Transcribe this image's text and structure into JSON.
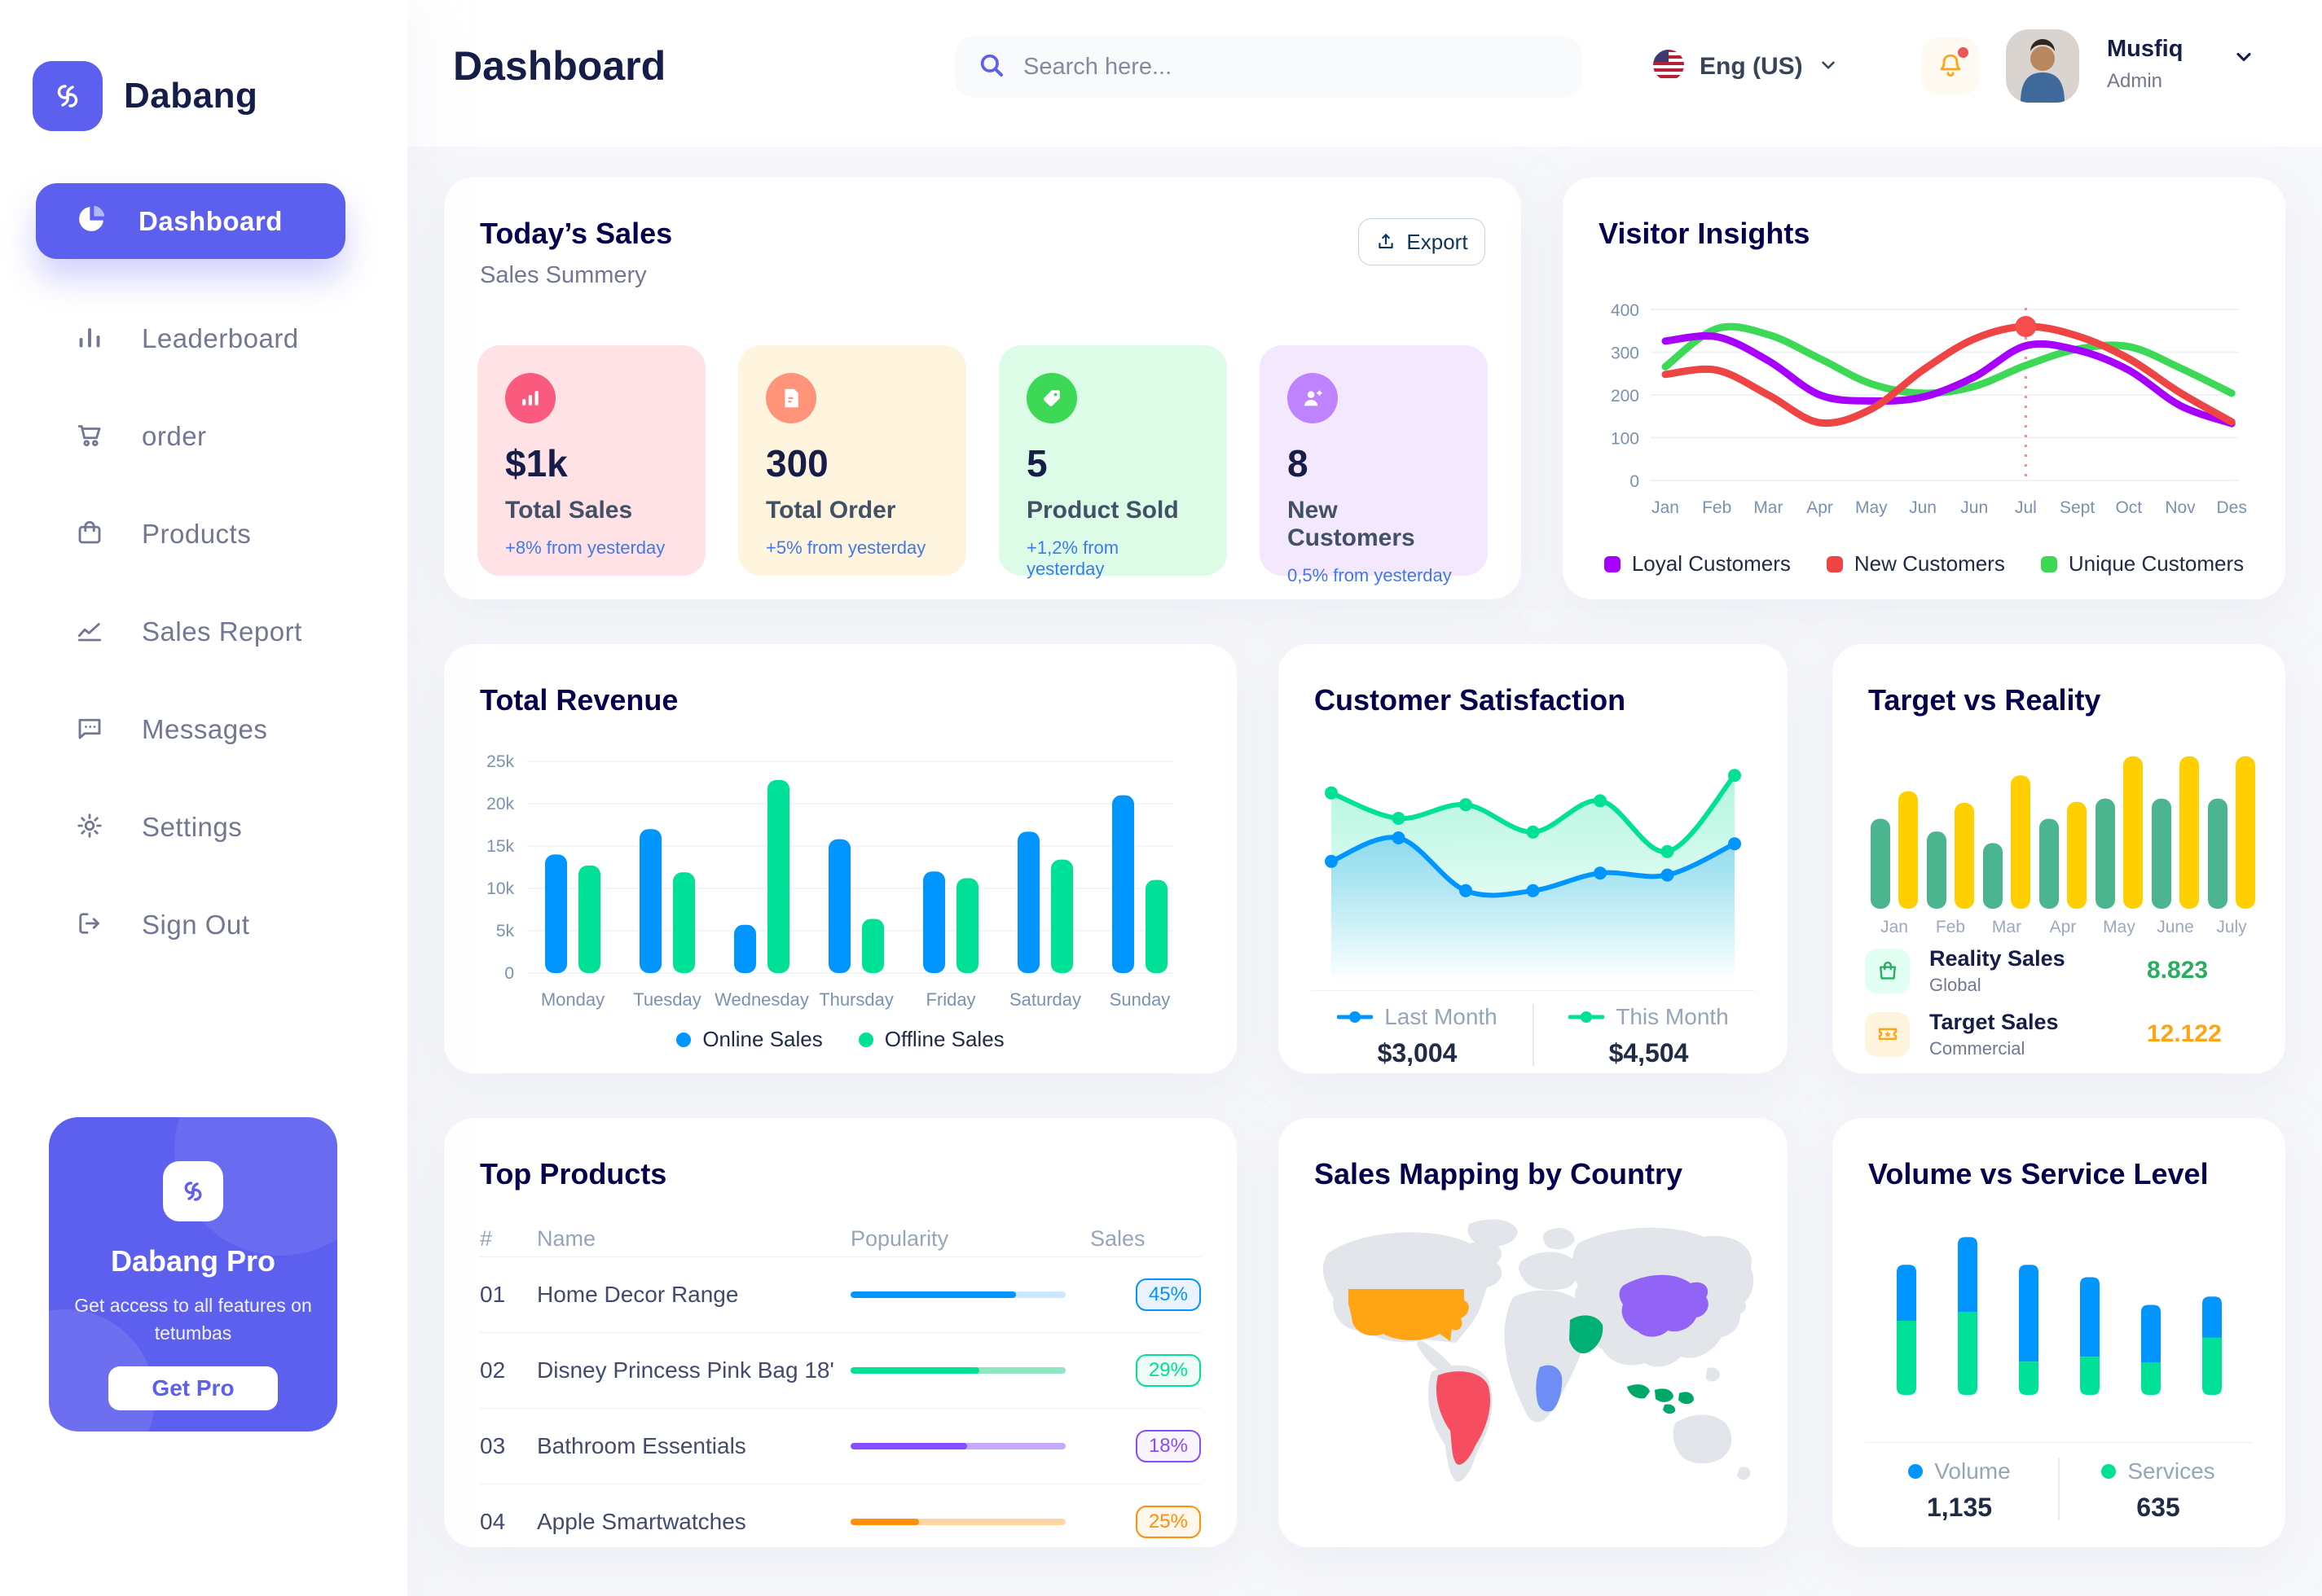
{
  "app": {
    "name": "Dabang",
    "accent_color": "#5D5FEF"
  },
  "sidebar": {
    "items": [
      {
        "label": "Dashboard",
        "icon": "pie-chart-icon",
        "active": true
      },
      {
        "label": "Leaderboard",
        "icon": "leaderboard-icon",
        "active": false
      },
      {
        "label": "order",
        "icon": "cart-icon",
        "active": false
      },
      {
        "label": "Products",
        "icon": "bag-icon",
        "active": false
      },
      {
        "label": "Sales Report",
        "icon": "sales-report-icon",
        "active": false
      },
      {
        "label": "Messages",
        "icon": "messages-icon",
        "active": false
      },
      {
        "label": "Settings",
        "icon": "gear-icon",
        "active": false
      },
      {
        "label": "Sign Out",
        "icon": "sign-out-icon",
        "active": false
      }
    ],
    "pro_card": {
      "title": "Dabang Pro",
      "description": "Get access to all features on tetumbas",
      "button_label": "Get Pro"
    }
  },
  "header": {
    "title": "Dashboard",
    "search_placeholder": "Search here...",
    "language": "Eng (US)",
    "user": {
      "name": "Musfiq",
      "role": "Admin"
    }
  },
  "todays_sales": {
    "title": "Today’s Sales",
    "subtitle": "Sales Summery",
    "export_label": "Export",
    "delta_color": "#4079ED",
    "stats": [
      {
        "value": "$1k",
        "label": "Total Sales",
        "delta": "+8% from yesterday",
        "bg": "#FFE2E5",
        "icon_bg": "#FA5A7D",
        "icon": "stats-icon"
      },
      {
        "value": "300",
        "label": "Total Order",
        "delta": "+5% from yesterday",
        "bg": "#FFF4DE",
        "icon_bg": "#FF947A",
        "icon": "order-file-icon"
      },
      {
        "value": "5",
        "label": "Product Sold",
        "delta": "+1,2% from yesterday",
        "bg": "#DCFCE7",
        "icon_bg": "#3CD856",
        "icon": "tag-icon"
      },
      {
        "value": "8",
        "label": "New Customers",
        "delta": "0,5% from yesterday",
        "bg": "#F3E8FF",
        "icon_bg": "#BF83FF",
        "icon": "user-plus-icon"
      }
    ]
  },
  "chart_data": {
    "visitor_insights": {
      "type": "line",
      "title": "Visitor Insights",
      "x": [
        "Jan",
        "Feb",
        "Mar",
        "Apr",
        "May",
        "Jun",
        "Jun",
        "Jul",
        "Sept",
        "Oct",
        "Nov",
        "Des"
      ],
      "ylim": [
        0,
        400
      ],
      "yticks": [
        0,
        100,
        200,
        300,
        400
      ],
      "grid": true,
      "legend_position": "bottom",
      "series": [
        {
          "name": "Unique Customers",
          "color": "#3CD856",
          "values": [
            266,
            355,
            341,
            285,
            226,
            204,
            220,
            269,
            307,
            313,
            263,
            204
          ]
        },
        {
          "name": "Loyal Customers",
          "color": "#A700FF",
          "values": [
            326,
            336,
            280,
            200,
            186,
            195,
            242,
            315,
            305,
            258,
            175,
            133
          ]
        },
        {
          "name": "New Customers",
          "color": "#EF4444",
          "values": [
            248,
            258,
            200,
            135,
            167,
            258,
            331,
            360,
            338,
            285,
            205,
            137
          ]
        }
      ],
      "marker": {
        "series": "New Customers",
        "index": 7,
        "label": "Jul",
        "value": 360,
        "color": "#F64E4E"
      }
    },
    "total_revenue": {
      "type": "bar",
      "title": "Total Revenue",
      "categories": [
        "Monday",
        "Tuesday",
        "Wednesday",
        "Thursday",
        "Friday",
        "Saturday",
        "Sunday"
      ],
      "ylim": [
        0,
        25000
      ],
      "ytick_labels": [
        "0",
        "5k",
        "10k",
        "15k",
        "20k",
        "25k"
      ],
      "unit": "k",
      "legend_position": "bottom",
      "series": [
        {
          "name": "Online Sales",
          "color": "#0095FF",
          "values": [
            14,
            17,
            5.7,
            15.8,
            12,
            16.7,
            21
          ]
        },
        {
          "name": "Offline Sales",
          "color": "#00E096",
          "values": [
            12.7,
            11.9,
            22.8,
            6.4,
            11.2,
            13.4,
            11
          ]
        }
      ]
    },
    "customer_satisfaction": {
      "type": "area",
      "title": "Customer Satisfaction",
      "legend_position": "bottom",
      "series": [
        {
          "name": "This Month",
          "color": "#00E096",
          "total": "$4,504",
          "values": [
            83,
            70,
            77,
            63,
            79,
            53,
            92
          ]
        },
        {
          "name": "Last Month",
          "color": "#0095FF",
          "total": "$3,004",
          "values": [
            48,
            60,
            33,
            33,
            42,
            41,
            57
          ]
        }
      ]
    },
    "target_vs_reality": {
      "type": "bar",
      "title": "Target vs Reality",
      "categories": [
        "Jan",
        "Feb",
        "Mar",
        "Apr",
        "May",
        "June",
        "July"
      ],
      "series": [
        {
          "name": "Reality Sales",
          "color": "#4AB58E",
          "values": [
            8.5,
            7.3,
            6.2,
            8.5,
            10.4,
            10.4,
            10.4
          ]
        },
        {
          "name": "Target Sales",
          "color": "#FFCF00",
          "values": [
            11.1,
            10,
            12.6,
            10.1,
            14.4,
            14.4,
            14.4
          ]
        }
      ],
      "legend": [
        {
          "label": "Reality Sales",
          "sub": "Global",
          "value": "8.823",
          "value_color": "#27AE60",
          "tile_bg": "#E2FFF3",
          "icon": "shopping-bag-icon"
        },
        {
          "label": "Target Sales",
          "sub": "Commercial",
          "value": "12.122",
          "value_color": "#FFA412",
          "tile_bg": "#FFF4DE",
          "icon": "ticket-icon"
        }
      ]
    },
    "volume_service_level": {
      "type": "stacked-bar",
      "title": "Volume vs Service Level",
      "legend_position": "bottom",
      "series": [
        {
          "name": "Volume",
          "color": "#0095FF",
          "total": "1,135",
          "values": [
            81,
            108,
            140,
            115,
            83,
            59
          ]
        },
        {
          "name": "Services",
          "color": "#00E096",
          "total": "635",
          "values": [
            107,
            120,
            48,
            55,
            47,
            83
          ]
        }
      ]
    }
  },
  "top_products": {
    "title": "Top Products",
    "headers": [
      "#",
      "Name",
      "Popularity",
      "Sales"
    ],
    "rows": [
      {
        "num": "01",
        "name": "Home Decor Range",
        "fill_pct": 77,
        "sales": "45%",
        "color": "#0095FF",
        "track_color": "#CDE7FF",
        "badge_bg": "#EAF3FF"
      },
      {
        "num": "02",
        "name": "Disney Princess Pink Bag 18'",
        "fill_pct": 60,
        "sales": "29%",
        "color": "#00E096",
        "track_color": "#8EE7C2",
        "badge_bg": "#EFFDF6"
      },
      {
        "num": "03",
        "name": "Bathroom Essentials",
        "fill_pct": 54,
        "sales": "18%",
        "color": "#884DFF",
        "track_color": "#C5A8FF",
        "badge_bg": "#F9F5FF"
      },
      {
        "num": "04",
        "name": "Apple Smartwatches",
        "fill_pct": 32,
        "sales": "25%",
        "color": "#FF8F0D",
        "track_color": "#FFD5A4",
        "badge_bg": "#FFF7EB"
      }
    ]
  },
  "sales_mapping": {
    "title": "Sales Mapping by Country",
    "countries": [
      {
        "name": "United States",
        "color": "#FFA412"
      },
      {
        "name": "Brazil",
        "color": "#F64E60"
      },
      {
        "name": "Saudi Arabia",
        "color": "#00B074"
      },
      {
        "name": "DR Congo",
        "color": "#6E8EF5"
      },
      {
        "name": "China",
        "color": "#9164F5"
      },
      {
        "name": "Indonesia",
        "color": "#00A868"
      }
    ]
  }
}
